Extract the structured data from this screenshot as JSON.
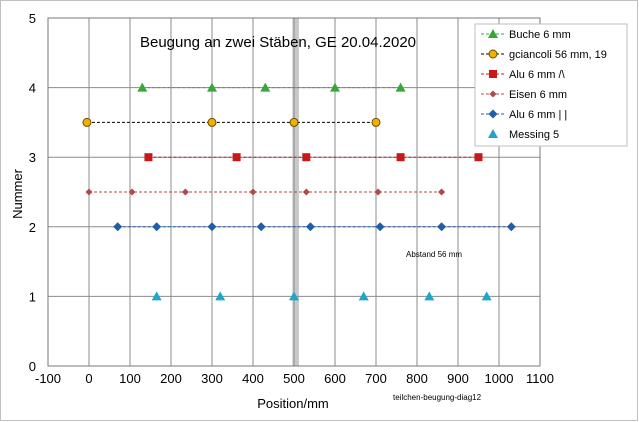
{
  "chart_data": {
    "type": "scatter",
    "title": "Beugung an zwei Stäben, GE  20.04.2020",
    "xlabel": "Position/mm",
    "ylabel": "Nummer",
    "xlim": [
      -100,
      1100
    ],
    "ylim": [
      0,
      5
    ],
    "xticks": [
      "-100",
      "0",
      "100",
      "200",
      "300",
      "400",
      "500",
      "600",
      "700",
      "800",
      "900",
      "1000",
      "1100"
    ],
    "yticks": [
      "0",
      "1",
      "2",
      "3",
      "4",
      "5"
    ],
    "grid": true,
    "legend_position": "top-right",
    "highlight_band_x": [
      496,
      512
    ],
    "annotations": [
      {
        "text": "Abstand 56 mm",
        "x": 770,
        "y": 1.6
      },
      {
        "text": "teilchen-beugung-diag12",
        "x": 490,
        "y": -0.45
      }
    ],
    "series": [
      {
        "name": "Buche 6 mm",
        "marker": "triangle",
        "color": "#3aa53a",
        "line": "dashed",
        "x": [
          130,
          300,
          430,
          600,
          760
        ],
        "y": [
          4,
          4,
          4,
          4,
          4
        ]
      },
      {
        "name": "gciancoli  56 mm, 19",
        "marker": "circle",
        "color": "#f0b000",
        "stroke": "#6b4e00",
        "line": "dashed",
        "x": [
          -5,
          300,
          500,
          700
        ],
        "y": [
          3.5,
          3.5,
          3.5,
          3.5
        ]
      },
      {
        "name": "Alu 6 mm /\\",
        "marker": "square",
        "color": "#c81818",
        "line": "dashed",
        "x": [
          145,
          360,
          530,
          760,
          950
        ],
        "y": [
          3,
          3,
          3,
          3,
          3
        ]
      },
      {
        "name": "Eisen 6 mm",
        "marker": "diamond-small",
        "color": "#b04a4a",
        "line": "dashed",
        "x": [
          0,
          105,
          235,
          400,
          530,
          705,
          860
        ],
        "y": [
          2.5,
          2.5,
          2.5,
          2.5,
          2.5,
          2.5,
          2.5
        ]
      },
      {
        "name": "Alu 6 mm  | |",
        "marker": "diamond",
        "color": "#1f5fa8",
        "line": "dashed",
        "x": [
          70,
          165,
          300,
          420,
          540,
          710,
          860,
          1030
        ],
        "y": [
          2,
          2,
          2,
          2,
          2,
          2,
          2,
          2
        ]
      },
      {
        "name": "Messing 5",
        "marker": "triangle",
        "color": "#1fa6c8",
        "line": "none",
        "x": [
          165,
          320,
          500,
          670,
          830,
          970
        ],
        "y": [
          1,
          1,
          1,
          1,
          1,
          1
        ]
      }
    ]
  }
}
